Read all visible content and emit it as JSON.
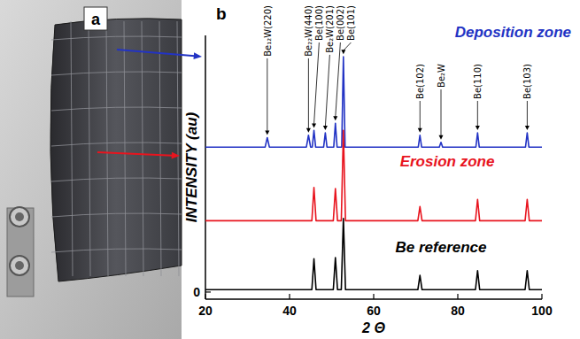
{
  "photo_panel": {
    "label": "a"
  },
  "chart_data": {
    "type": "line",
    "panel_label": "b",
    "xlabel": "2 Θ",
    "ylabel": "INTENSITY (au)",
    "xlim": [
      20,
      100
    ],
    "xticks": [
      20,
      40,
      60,
      80,
      100
    ],
    "ylim": [
      -3,
      108
    ],
    "yticks": [
      0
    ],
    "grid": false,
    "series": [
      {
        "name": "Deposition zone",
        "color": "#2233c4",
        "x": [
          20,
          34.2,
          34.7,
          35.2,
          44.0,
          44.5,
          45.0,
          45.4,
          45.8,
          46.2,
          48.1,
          48.5,
          48.9,
          50.5,
          50.9,
          51.3,
          52.4,
          52.8,
          53.2,
          70.6,
          71.0,
          71.4,
          75.6,
          76.0,
          76.4,
          84.3,
          84.7,
          85.1,
          96.1,
          96.5,
          96.9,
          100
        ],
        "values": [
          61,
          61,
          65,
          61,
          61,
          66,
          61,
          61,
          68,
          61,
          61,
          67,
          61,
          61,
          71,
          61,
          61,
          99,
          61,
          61,
          66,
          61,
          61,
          63,
          61,
          61,
          67,
          61,
          61,
          67,
          61,
          61
        ]
      },
      {
        "name": "Erosion zone",
        "color": "#e8141e",
        "x": [
          20,
          45.3,
          45.8,
          46.3,
          50.4,
          50.9,
          51.4,
          52.3,
          52.8,
          53.3,
          70.5,
          71.0,
          71.5,
          84.2,
          84.7,
          85.2,
          96.0,
          96.5,
          97.0,
          100
        ],
        "values": [
          30,
          30,
          44,
          30,
          30,
          43.5,
          30,
          30,
          68,
          30,
          30,
          36,
          30,
          30,
          39,
          30,
          30,
          39,
          30,
          30
        ]
      },
      {
        "name": "Be reference",
        "color": "#000000",
        "x": [
          20,
          45.3,
          45.8,
          46.3,
          50.4,
          50.9,
          51.4,
          52.3,
          52.8,
          53.3,
          70.5,
          71.0,
          71.5,
          84.2,
          84.7,
          85.2,
          96.0,
          96.5,
          97.0,
          100
        ],
        "values": [
          1,
          1,
          14,
          1,
          1,
          14.5,
          1,
          1,
          31,
          1,
          1,
          7,
          1,
          1,
          9,
          1,
          1,
          9,
          1,
          1
        ]
      }
    ],
    "annotations": [
      {
        "text": "Be₁₂W(220)",
        "x": 34.7,
        "y": 65
      },
      {
        "text": "Be₂₂W(440)",
        "x": 44.5,
        "y": 66
      },
      {
        "text": "Be(100)",
        "x": 45.8,
        "y": 68
      },
      {
        "text": "Be₂W(201)",
        "x": 48.5,
        "y": 67
      },
      {
        "text": "Be(002)",
        "x": 50.9,
        "y": 71
      },
      {
        "text": "Be(101)",
        "x": 52.8,
        "y": 99
      },
      {
        "text": "Be(102)",
        "x": 71.0,
        "y": 66
      },
      {
        "text": "Be₂W",
        "x": 76.0,
        "y": 63
      },
      {
        "text": "Be(110)",
        "x": 84.7,
        "y": 67
      },
      {
        "text": "Be(103)",
        "x": 96.5,
        "y": 67
      }
    ]
  }
}
